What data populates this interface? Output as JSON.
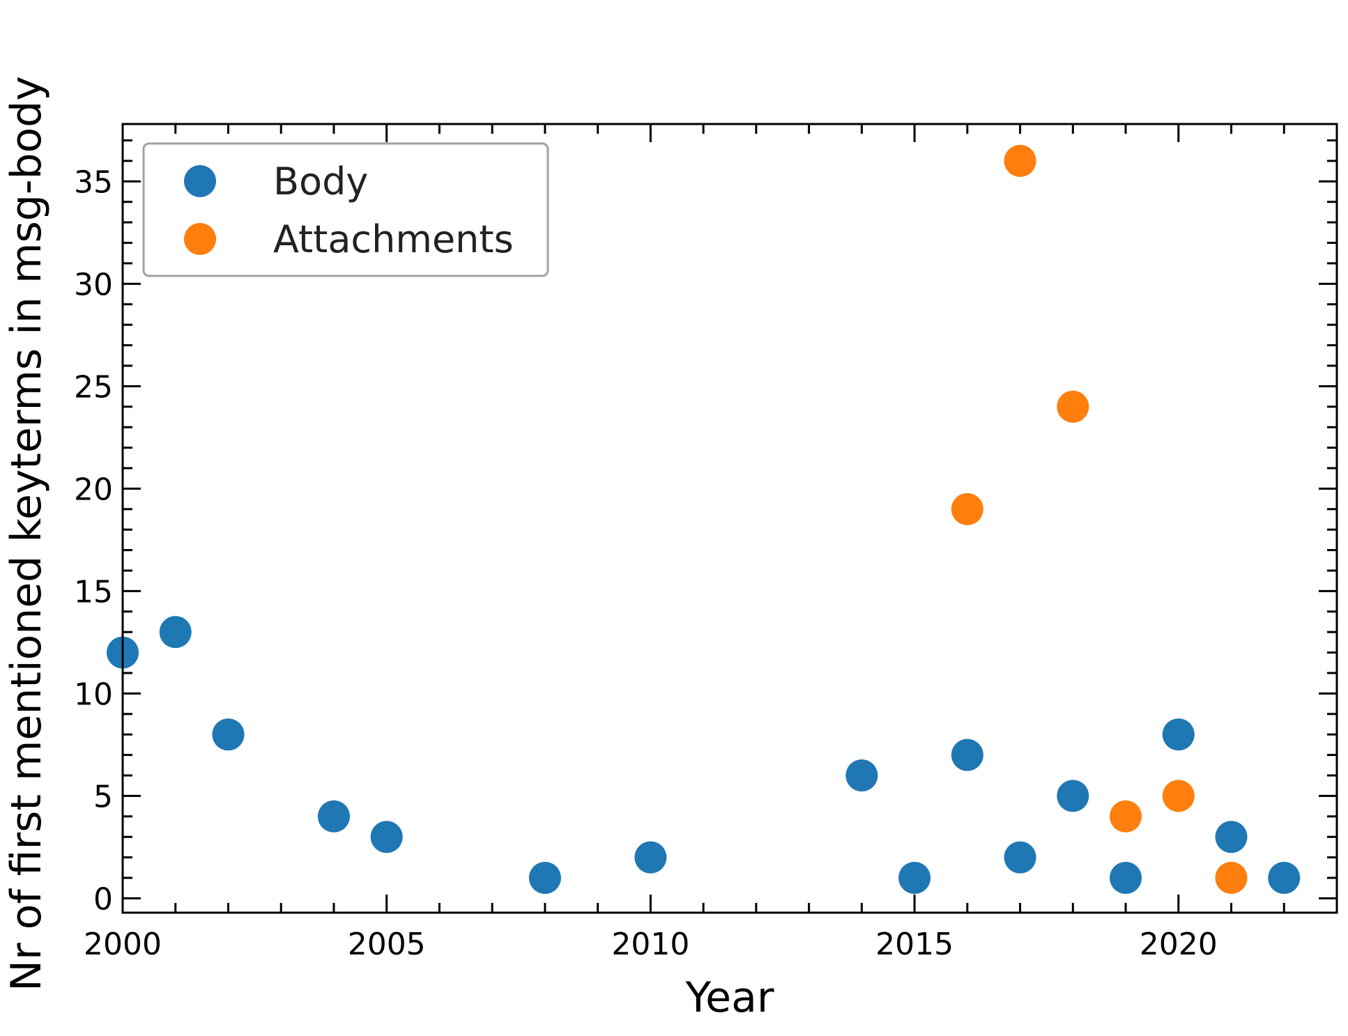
{
  "chart_data": {
    "type": "scatter",
    "xlabel": "Year",
    "ylabel": "Nr of first mentioned keyterms in msg-body",
    "xlim": [
      2000,
      2023
    ],
    "ylim": [
      -0.7,
      37.8
    ],
    "x_major_ticks": [
      2000,
      2005,
      2010,
      2015,
      2020
    ],
    "x_minor_step": 1,
    "y_major_ticks": [
      0,
      5,
      10,
      15,
      20,
      25,
      30,
      35
    ],
    "y_minor_step": 1,
    "legend_position": "top-left",
    "series": [
      {
        "name": "Body",
        "color": "#1f77b4",
        "points": [
          {
            "x": 2000,
            "y": 12
          },
          {
            "x": 2001,
            "y": 13
          },
          {
            "x": 2002,
            "y": 8
          },
          {
            "x": 2004,
            "y": 4
          },
          {
            "x": 2005,
            "y": 3
          },
          {
            "x": 2008,
            "y": 1
          },
          {
            "x": 2010,
            "y": 2
          },
          {
            "x": 2014,
            "y": 6
          },
          {
            "x": 2015,
            "y": 1
          },
          {
            "x": 2016,
            "y": 7
          },
          {
            "x": 2017,
            "y": 2
          },
          {
            "x": 2018,
            "y": 5
          },
          {
            "x": 2019,
            "y": 1
          },
          {
            "x": 2020,
            "y": 8
          },
          {
            "x": 2021,
            "y": 3
          },
          {
            "x": 2022,
            "y": 1
          }
        ]
      },
      {
        "name": "Attachments",
        "color": "#ff7f0e",
        "points": [
          {
            "x": 2016,
            "y": 19
          },
          {
            "x": 2017,
            "y": 36
          },
          {
            "x": 2018,
            "y": 24
          },
          {
            "x": 2019,
            "y": 4
          },
          {
            "x": 2020,
            "y": 5
          },
          {
            "x": 2021,
            "y": 1
          }
        ]
      }
    ]
  }
}
